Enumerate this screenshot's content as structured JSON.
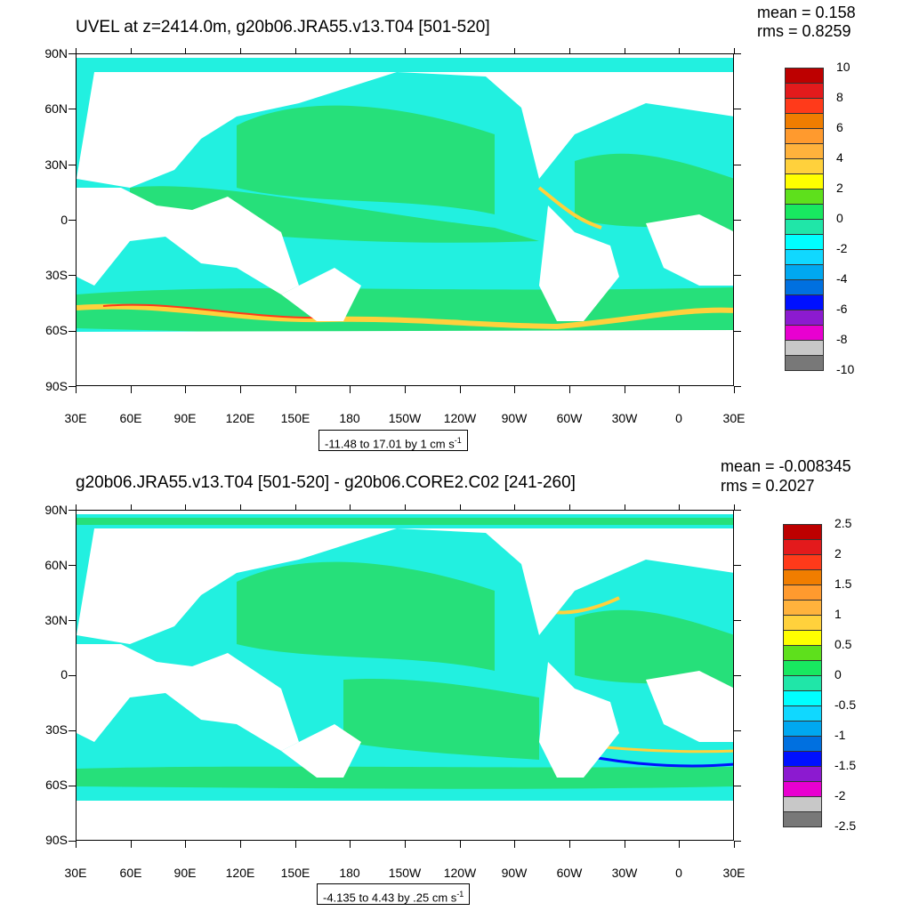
{
  "panels": [
    {
      "title": "UVEL at z=2414.0m, g20b06.JRA55.v13.T04 [501-520]",
      "mean": "mean = 0.158",
      "rms": "rms = 0.8259",
      "info_text": "-11.48 to 17.01 by 1 cm s",
      "info_sup": "-1",
      "colorbar_labels": [
        "10",
        "8",
        "6",
        "4",
        "2",
        "0",
        "-2",
        "-4",
        "-6",
        "-8",
        "-10"
      ]
    },
    {
      "title": "g20b06.JRA55.v13.T04 [501-520] - g20b06.CORE2.C02 [241-260]",
      "mean": "mean = -0.008345",
      "rms": "rms = 0.2027",
      "info_text": "-4.135 to 4.43 by .25 cm s",
      "info_sup": "-1",
      "colorbar_labels": [
        "2.5",
        "2",
        "1.5",
        "1",
        "0.5",
        "0",
        "-0.5",
        "-1",
        "-1.5",
        "-2",
        "-2.5"
      ]
    }
  ],
  "lat_labels": [
    "90N",
    "60N",
    "30N",
    "0",
    "30S",
    "60S",
    "90S"
  ],
  "lon_labels": [
    "30E",
    "60E",
    "90E",
    "120E",
    "150E",
    "180",
    "150W",
    "120W",
    "90W",
    "60W",
    "30W",
    "0",
    "30E"
  ],
  "colors": {
    "palette": [
      "#bd0000",
      "#e31a1c",
      "#ff3a1a",
      "#f07d00",
      "#ff9a2e",
      "#ffb23c",
      "#ffd13c",
      "#ffff00",
      "#5ee01c",
      "#18e860",
      "#20e6a8",
      "#00ffff",
      "#10d8ff",
      "#00a8f0",
      "#0070e0",
      "#0010ff",
      "#8c1ad0",
      "#e800d0",
      "#c8c8c8",
      "#787878"
    ],
    "ocean_green": "#26e07a",
    "ocean_cyan": "#22f0e0",
    "land": "#ffffff"
  }
}
